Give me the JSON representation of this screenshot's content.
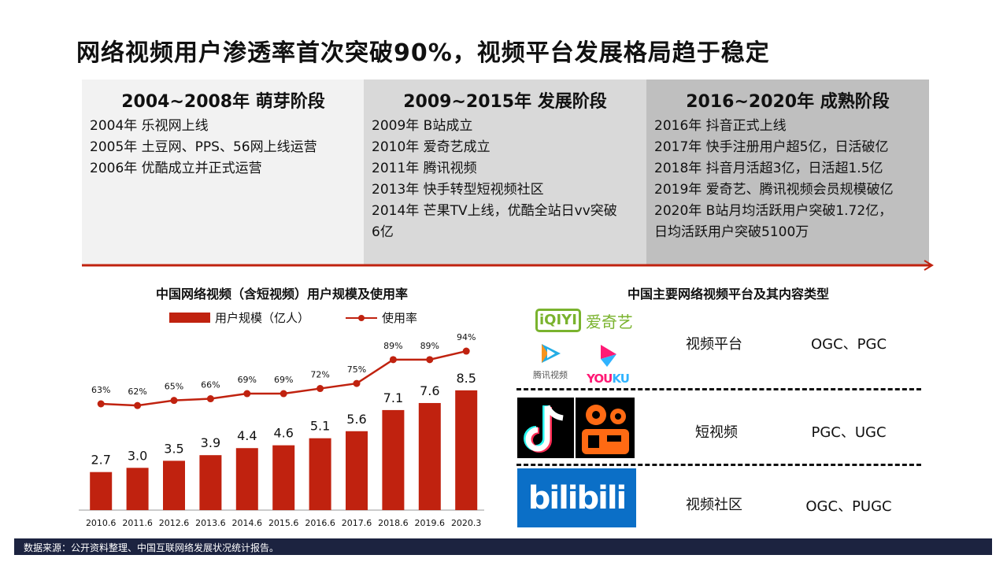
{
  "title": "网络视频用户渗透率首次突破90%，视频平台发展格局趋于稳定",
  "stages": [
    {
      "heading": "2004~2008年 萌芽阶段",
      "color": "#f2f2f2",
      "items": [
        "2004年 乐视网上线",
        "2005年 土豆网、PPS、56网上线运营",
        "2006年 优酷成立并正式运营"
      ]
    },
    {
      "heading": "2009~2015年 发展阶段",
      "color": "#d9d9d9",
      "items": [
        "2009年 B站成立",
        "2010年 爱奇艺成立",
        "2011年 腾讯视频",
        "2013年 快手转型短视频社区",
        "2014年 芒果TV上线，优酷全站日vv突破",
        "6亿"
      ]
    },
    {
      "heading": "2016~2020年 成熟阶段",
      "color": "#bfbfbf",
      "items": [
        "2016年 抖音正式上线",
        "2017年 快手注册用户超5亿，日活破亿",
        "2018年 抖音月活超3亿，日活超1.5亿",
        "2019年 爱奇艺、腾讯视频会员规模破亿",
        "2020年 B站月均活跃用户突破1.72亿，",
        "日均活跃用户突破5100万"
      ]
    }
  ],
  "chart_data": {
    "type": "bar+line",
    "title": "中国网络视频（含短视频）用户规模及使用率",
    "categories": [
      "2010.6",
      "2011.6",
      "2012.6",
      "2013.6",
      "2014.6",
      "2015.6",
      "2016.6",
      "2017.6",
      "2018.6",
      "2019.6",
      "2020.3"
    ],
    "series": [
      {
        "name": "用户规模（亿人）",
        "type": "bar",
        "color": "#c0220f",
        "values": [
          2.7,
          3.0,
          3.5,
          3.9,
          4.4,
          4.6,
          5.1,
          5.6,
          7.1,
          7.6,
          8.5
        ],
        "labels": [
          "2.7",
          "3.0",
          "3.5",
          "3.9",
          "4.4",
          "4.6",
          "5.1",
          "5.6",
          "7.1",
          "7.6",
          "8.5"
        ]
      },
      {
        "name": "使用率",
        "type": "line",
        "color": "#c0220f",
        "values": [
          63,
          62,
          65,
          66,
          69,
          69,
          72,
          75,
          89,
          89,
          94
        ],
        "labels": [
          "63%",
          "62%",
          "65%",
          "66%",
          "69%",
          "69%",
          "72%",
          "75%",
          "89%",
          "89%",
          "94%"
        ]
      }
    ],
    "legend": "top"
  },
  "platforms": {
    "title": "中国主要网络视频平台及其内容类型",
    "rows": [
      {
        "logos": [
          "iQIYI 爱奇艺",
          "腾讯视频",
          "YOUKU"
        ],
        "type": "视频平台",
        "content": "OGC、PGC"
      },
      {
        "logos": [
          "抖音",
          "快手"
        ],
        "type": "短视频",
        "content": "PGC、UGC"
      },
      {
        "logos": [
          "bilibili"
        ],
        "type": "视频社区",
        "content": "OGC、PUGC"
      }
    ]
  },
  "footer": "数据来源：公开资料整理、中国互联网络发展状况统计报告。"
}
